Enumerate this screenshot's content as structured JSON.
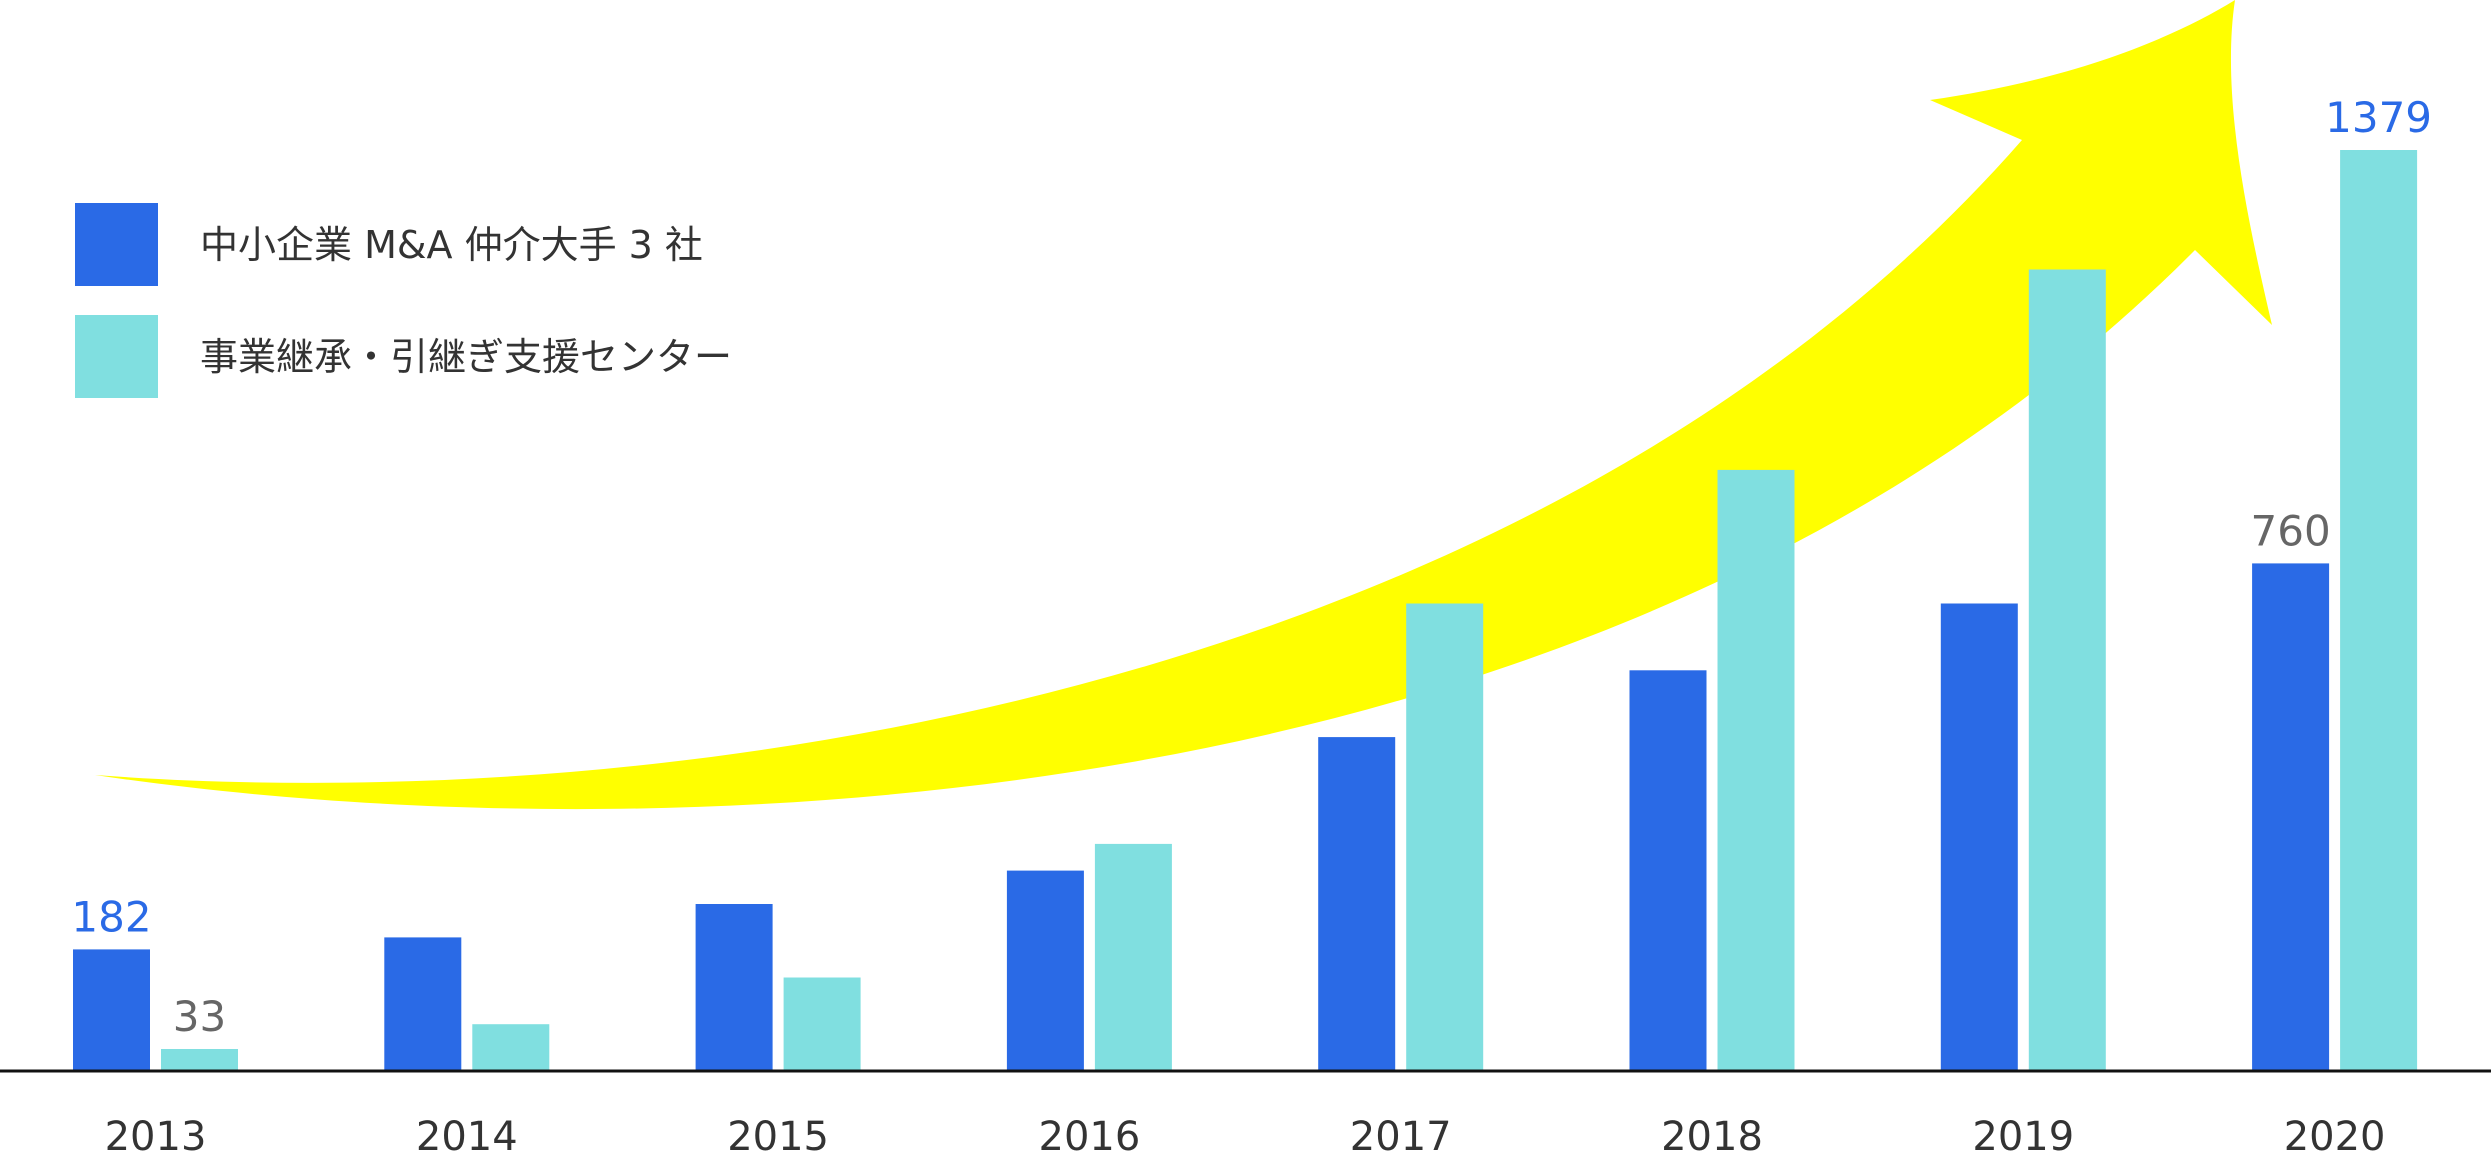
{
  "chart_data": {
    "type": "bar",
    "categories": [
      "2013",
      "2014",
      "2015",
      "2016",
      "2017",
      "2018",
      "2019",
      "2020"
    ],
    "series": [
      {
        "name": "中小企業 M&A 仲介大手 3 社",
        "color": "#2a6ae6",
        "values": [
          182,
          200,
          250,
          300,
          500,
          600,
          700,
          760
        ]
      },
      {
        "name": "事業継承・引継ぎ支援センター",
        "color": "#80dfe0",
        "values": [
          33,
          70,
          140,
          340,
          700,
          900,
          1200,
          1379
        ]
      }
    ],
    "data_labels": [
      {
        "series": 0,
        "index": 0,
        "text": "182",
        "color": "#2a6ae6"
      },
      {
        "series": 1,
        "index": 0,
        "text": "33",
        "color": "#666666"
      },
      {
        "series": 0,
        "index": 7,
        "text": "760",
        "color": "#666666"
      },
      {
        "series": 1,
        "index": 7,
        "text": "1379",
        "color": "#2a6ae6"
      }
    ],
    "ylim": [
      0,
      1379
    ],
    "legend_position": "top-left",
    "grid": false,
    "trend_arrow_color": "#ffff00",
    "title": "",
    "xlabel": "",
    "ylabel": ""
  }
}
